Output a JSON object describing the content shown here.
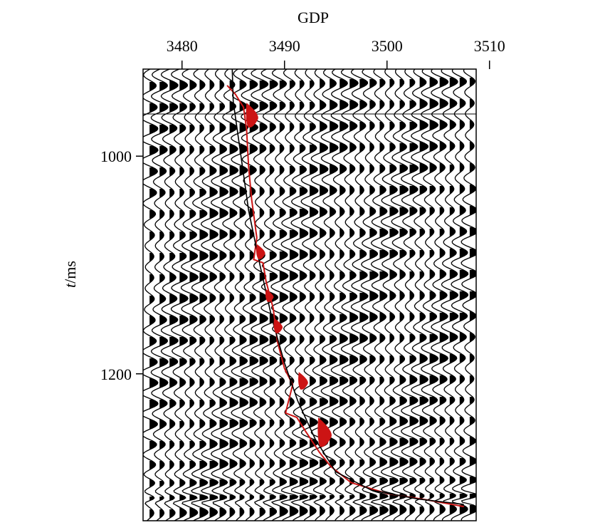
{
  "chart_data": {
    "type": "seismic-section",
    "xlabel": "GDP",
    "ylabel_var": "t",
    "ylabel_unit": "/ms",
    "x_ticks": [
      3480,
      3490,
      3500,
      3510
    ],
    "x_tick_labels": [
      "3480",
      "3490",
      "3500",
      "3510"
    ],
    "y_ticks": [
      1000,
      1200
    ],
    "y_tick_labels": [
      "1000",
      "1200"
    ],
    "x_range": [
      3476.2,
      3508.7
    ],
    "y_range": [
      920,
      1335
    ],
    "xaxis_position": "top",
    "trace_count": 33,
    "wavelet_period_ms": 20,
    "horizon_black": {
      "color": "#000000",
      "points": [
        [
          3484.9,
          920
        ],
        [
          3485.0,
          950
        ],
        [
          3485.6,
          990
        ],
        [
          3486.5,
          1050
        ],
        [
          3487.6,
          1100
        ],
        [
          3488.8,
          1150
        ],
        [
          3490.0,
          1190
        ],
        [
          3491.3,
          1225
        ],
        [
          3493.0,
          1260
        ],
        [
          3495.0,
          1290
        ],
        [
          3498.5,
          1307
        ],
        [
          3503.0,
          1315
        ],
        [
          3507.5,
          1320
        ]
      ]
    },
    "horizon_red": {
      "color": "#cc1414",
      "points": [
        [
          3484.4,
          935
        ],
        [
          3485.2,
          943
        ],
        [
          3486.0,
          955
        ],
        [
          3486.3,
          975
        ],
        [
          3486.5,
          1010
        ],
        [
          3486.8,
          1040
        ],
        [
          3487.3,
          1075
        ],
        [
          3487.0,
          1095
        ],
        [
          3487.9,
          1098
        ],
        [
          3488.2,
          1115
        ],
        [
          3488.9,
          1140
        ],
        [
          3489.3,
          1170
        ],
        [
          3490.0,
          1195
        ],
        [
          3490.8,
          1210
        ],
        [
          3490.1,
          1236
        ],
        [
          3491.2,
          1240
        ],
        [
          3492.0,
          1252
        ],
        [
          3493.4,
          1272
        ],
        [
          3494.5,
          1285
        ],
        [
          3496.5,
          1300
        ],
        [
          3500.0,
          1310
        ],
        [
          3504.0,
          1316
        ],
        [
          3507.5,
          1322
        ]
      ],
      "blobs": [
        {
          "x": 3486.6,
          "t": 966,
          "size": 1.0
        },
        {
          "x": 3487.6,
          "t": 1090,
          "size": 0.6
        },
        {
          "x": 3488.5,
          "t": 1130,
          "size": 0.5
        },
        {
          "x": 3489.3,
          "t": 1158,
          "size": 0.6
        },
        {
          "x": 3491.7,
          "t": 1209,
          "size": 0.7
        },
        {
          "x": 3493.6,
          "t": 1258,
          "size": 1.2
        }
      ]
    }
  }
}
